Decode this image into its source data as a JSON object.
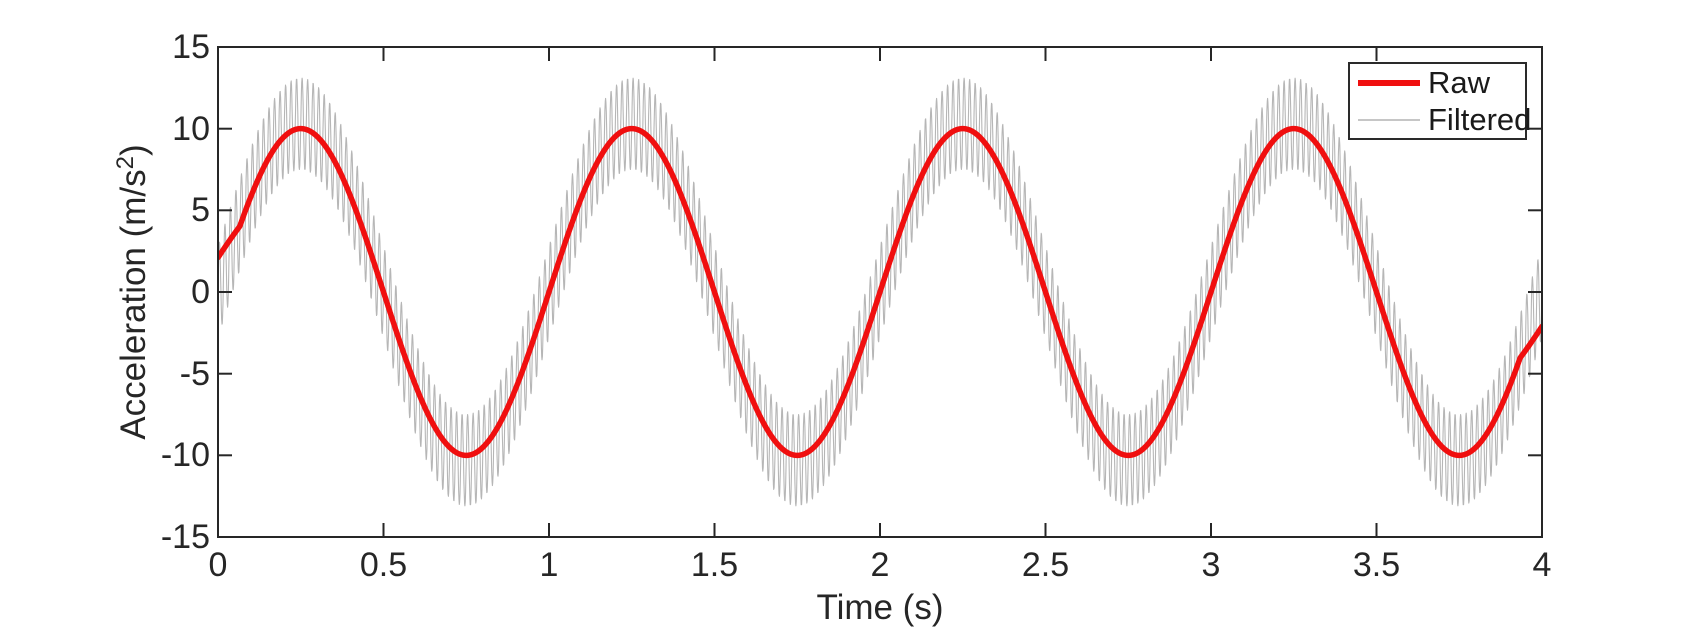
{
  "figure": {
    "background": "#ffffff",
    "axis_color": "#262626"
  },
  "chart_data": {
    "type": "line",
    "title": "",
    "xlabel": "Time (s)",
    "ylabel": {
      "prefix": "Acceleration (m/s",
      "sup": "2",
      "suffix": ")"
    },
    "xlim": [
      0,
      4
    ],
    "ylim": [
      -15,
      15
    ],
    "grid": false,
    "box": true,
    "tick_dir": "in",
    "x_ticks": {
      "values": [
        0,
        0.5,
        1,
        1.5,
        2,
        2.5,
        3,
        3.5,
        4
      ],
      "labels": [
        "0",
        "0.5",
        "1",
        "1.5",
        "2",
        "2.5",
        "3",
        "3.5",
        "4"
      ]
    },
    "y_ticks": {
      "values": [
        -15,
        -10,
        -5,
        0,
        5,
        10,
        15
      ],
      "labels": [
        "-15",
        "-10",
        "-5",
        "0",
        "5",
        "10",
        "15"
      ]
    },
    "legend": {
      "position": "northeast",
      "border": true,
      "entries": [
        {
          "label": "Raw",
          "color": "#f00f0f",
          "line_width": 6
        },
        {
          "label": "Filtered",
          "color": "#c6c6c6",
          "line_width": 2
        }
      ]
    },
    "sample_range_s": [
      0,
      4
    ],
    "samples": 4001,
    "series": [
      {
        "name": "Raw",
        "color": "#f00f0f",
        "stroke_width": 5.5,
        "model": "movmean_smoothed_sine",
        "amplitude": 10.3,
        "frequency_hz": 1,
        "phase_rad": 0,
        "smoothing": {
          "method": "movmean",
          "window_s": 0.131,
          "endpoints": "shrink"
        },
        "peak_value": 10,
        "trough_value": -10,
        "peaks_at_s": [
          0.25,
          1.25,
          2.25,
          3.25
        ],
        "troughs_at_s": [
          0.75,
          1.75,
          2.75,
          3.75
        ],
        "start_value": 2.1,
        "end_value": -2.4
      },
      {
        "name": "Filtered",
        "color": "#b6b6b6",
        "stroke_width": 1.1,
        "model": "sine_plus_ripple",
        "amplitude": 10.3,
        "frequency_hz": 1,
        "phase_rad": 0,
        "ripple_amplitude": 2.8,
        "ripple_frequency_hz": 60,
        "envelope_max": 13,
        "envelope_min": -13
      }
    ]
  }
}
